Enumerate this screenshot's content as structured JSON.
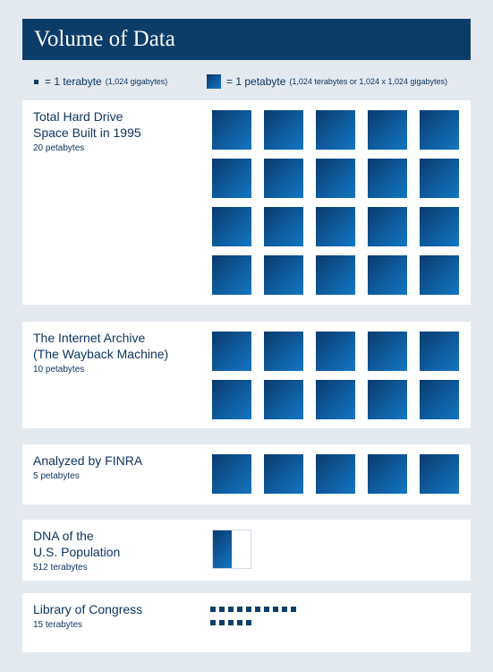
{
  "title": "Volume of Data",
  "legend": {
    "terabyte": {
      "main": "= 1 terabyte",
      "note": "(1,024 gigabytes)"
    },
    "petabyte": {
      "main": "= 1 petabyte",
      "note": "(1,024 terabytes or 1,024 x 1,024 gigabytes)"
    }
  },
  "chart_data": {
    "type": "pictograph",
    "unit_large": "petabyte",
    "unit_small": "terabyte",
    "terabytes_per_petabyte": 1024,
    "colors": {
      "header": "#0c3d69",
      "square_dark": "#0a3b6f",
      "square_light": "#1376c2",
      "background": "#e4e9ef"
    },
    "items": [
      {
        "label": "Total Hard Drive\nSpace Built in 1995",
        "sublabel": "20 petabytes",
        "value": 20,
        "unit": "petabyte"
      },
      {
        "label": "The Internet Archive\n(The Wayback Machine)",
        "sublabel": "10 petabytes",
        "value": 10,
        "unit": "petabyte"
      },
      {
        "label": "Analyzed by FINRA",
        "sublabel": "5 petabytes",
        "value": 5,
        "unit": "petabyte"
      },
      {
        "label": "DNA of the\nU.S. Population",
        "sublabel": "512 terabytes",
        "value": 512,
        "unit": "terabyte"
      },
      {
        "label": "Library of Congress",
        "sublabel": "15 terabytes",
        "value": 15,
        "unit": "terabyte"
      }
    ]
  }
}
